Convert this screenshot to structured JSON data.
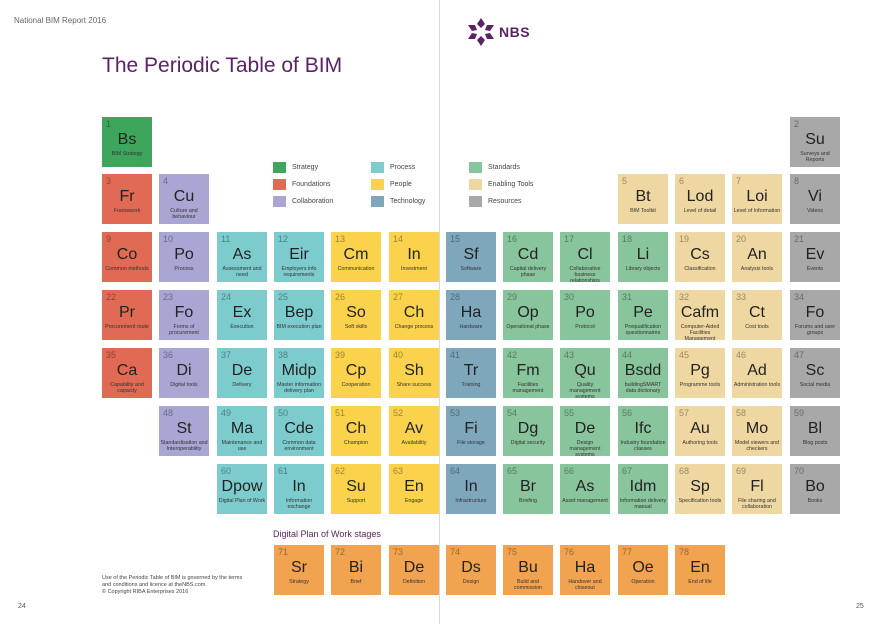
{
  "header": {
    "report_title": "National BIM Report 2016"
  },
  "logo": {
    "text": "NBS"
  },
  "title": "The Periodic Table of BIM",
  "colors": {
    "strategy": "#3ea55c",
    "foundations": "#e06a53",
    "collaboration": "#a9a6d3",
    "process": "#7ccccd",
    "people": "#fbd24b",
    "technology": "#7fa7bc",
    "standards": "#88c49c",
    "enabling": "#efd7a1",
    "resources": "#a8a8a8",
    "dpow": "#f2a350",
    "brand": "#5b2266"
  },
  "legend": [
    {
      "label": "Strategy",
      "cat": "strategy"
    },
    {
      "label": "Foundations",
      "cat": "foundations"
    },
    {
      "label": "Collaboration",
      "cat": "collaboration"
    },
    {
      "label": "Process",
      "cat": "process"
    },
    {
      "label": "People",
      "cat": "people"
    },
    {
      "label": "Technology",
      "cat": "technology"
    },
    {
      "label": "Standards",
      "cat": "standards"
    },
    {
      "label": "Enabling Tools",
      "cat": "enabling"
    },
    {
      "label": "Resources",
      "cat": "resources"
    }
  ],
  "elements": [
    {
      "n": "1",
      "s": "Bs",
      "name": "BIM Strategy",
      "cat": "strategy",
      "row": 0,
      "col": 0
    },
    {
      "n": "2",
      "s": "Su",
      "name": "Surveys and Reports",
      "cat": "resources",
      "row": 0,
      "col": 12
    },
    {
      "n": "3",
      "s": "Fr",
      "name": "Framework",
      "cat": "foundations",
      "row": 1,
      "col": 0
    },
    {
      "n": "4",
      "s": "Cu",
      "name": "Culture and behaviour",
      "cat": "collaboration",
      "row": 1,
      "col": 1
    },
    {
      "n": "5",
      "s": "Bt",
      "name": "BIM Toolkit",
      "cat": "enabling",
      "row": 1,
      "col": 9
    },
    {
      "n": "6",
      "s": "Lod",
      "name": "Level of detail",
      "cat": "enabling",
      "row": 1,
      "col": 10
    },
    {
      "n": "7",
      "s": "Loi",
      "name": "Level of Information",
      "cat": "enabling",
      "row": 1,
      "col": 11
    },
    {
      "n": "8",
      "s": "Vi",
      "name": "Videos",
      "cat": "resources",
      "row": 1,
      "col": 12
    },
    {
      "n": "9",
      "s": "Co",
      "name": "Common methods",
      "cat": "foundations",
      "row": 2,
      "col": 0
    },
    {
      "n": "10",
      "s": "Po",
      "name": "Process",
      "cat": "collaboration",
      "row": 2,
      "col": 1
    },
    {
      "n": "11",
      "s": "As",
      "name": "Assessment and need",
      "cat": "process",
      "row": 2,
      "col": 2
    },
    {
      "n": "12",
      "s": "Eir",
      "name": "Employers info requirements",
      "cat": "process",
      "row": 2,
      "col": 3
    },
    {
      "n": "13",
      "s": "Cm",
      "name": "Communication",
      "cat": "people",
      "row": 2,
      "col": 4
    },
    {
      "n": "14",
      "s": "In",
      "name": "Investment",
      "cat": "people",
      "row": 2,
      "col": 5
    },
    {
      "n": "15",
      "s": "Sf",
      "name": "Software",
      "cat": "technology",
      "row": 2,
      "col": 6
    },
    {
      "n": "16",
      "s": "Cd",
      "name": "Capital delivery phase",
      "cat": "standards",
      "row": 2,
      "col": 7
    },
    {
      "n": "17",
      "s": "Cl",
      "name": "Collaborative business relationships",
      "cat": "standards",
      "row": 2,
      "col": 8
    },
    {
      "n": "18",
      "s": "Li",
      "name": "Library objects",
      "cat": "standards",
      "row": 2,
      "col": 9
    },
    {
      "n": "19",
      "s": "Cs",
      "name": "Classification",
      "cat": "enabling",
      "row": 2,
      "col": 10
    },
    {
      "n": "20",
      "s": "An",
      "name": "Analysis tools",
      "cat": "enabling",
      "row": 2,
      "col": 11
    },
    {
      "n": "21",
      "s": "Ev",
      "name": "Events",
      "cat": "resources",
      "row": 2,
      "col": 12
    },
    {
      "n": "22",
      "s": "Pr",
      "name": "Procurement route",
      "cat": "foundations",
      "row": 3,
      "col": 0
    },
    {
      "n": "23",
      "s": "Fo",
      "name": "Forms of procurement",
      "cat": "collaboration",
      "row": 3,
      "col": 1
    },
    {
      "n": "24",
      "s": "Ex",
      "name": "Execution",
      "cat": "process",
      "row": 3,
      "col": 2
    },
    {
      "n": "25",
      "s": "Bep",
      "name": "BIM execution plan",
      "cat": "process",
      "row": 3,
      "col": 3
    },
    {
      "n": "26",
      "s": "So",
      "name": "Soft skills",
      "cat": "people",
      "row": 3,
      "col": 4
    },
    {
      "n": "27",
      "s": "Ch",
      "name": "Change process",
      "cat": "people",
      "row": 3,
      "col": 5
    },
    {
      "n": "28",
      "s": "Ha",
      "name": "Hardware",
      "cat": "technology",
      "row": 3,
      "col": 6
    },
    {
      "n": "29",
      "s": "Op",
      "name": "Operational phase",
      "cat": "standards",
      "row": 3,
      "col": 7
    },
    {
      "n": "30",
      "s": "Po",
      "name": "Protocol",
      "cat": "standards",
      "row": 3,
      "col": 8
    },
    {
      "n": "31",
      "s": "Pe",
      "name": "Prequalification questionnaires",
      "cat": "standards",
      "row": 3,
      "col": 9
    },
    {
      "n": "32",
      "s": "Cafm",
      "name": "Computer-Aided Facilities Management",
      "cat": "enabling",
      "row": 3,
      "col": 10
    },
    {
      "n": "33",
      "s": "Ct",
      "name": "Cost tools",
      "cat": "enabling",
      "row": 3,
      "col": 11
    },
    {
      "n": "34",
      "s": "Fo",
      "name": "Forums and user groups",
      "cat": "resources",
      "row": 3,
      "col": 12
    },
    {
      "n": "35",
      "s": "Ca",
      "name": "Capability and capacity",
      "cat": "foundations",
      "row": 4,
      "col": 0
    },
    {
      "n": "36",
      "s": "Di",
      "name": "Digital tools",
      "cat": "collaboration",
      "row": 4,
      "col": 1
    },
    {
      "n": "37",
      "s": "De",
      "name": "Delivery",
      "cat": "process",
      "row": 4,
      "col": 2
    },
    {
      "n": "38",
      "s": "Midp",
      "name": "Master information delivery plan",
      "cat": "process",
      "row": 4,
      "col": 3
    },
    {
      "n": "39",
      "s": "Cp",
      "name": "Cooperation",
      "cat": "people",
      "row": 4,
      "col": 4
    },
    {
      "n": "40",
      "s": "Sh",
      "name": "Share success",
      "cat": "people",
      "row": 4,
      "col": 5
    },
    {
      "n": "41",
      "s": "Tr",
      "name": "Training",
      "cat": "technology",
      "row": 4,
      "col": 6
    },
    {
      "n": "42",
      "s": "Fm",
      "name": "Facilities management",
      "cat": "standards",
      "row": 4,
      "col": 7
    },
    {
      "n": "43",
      "s": "Qu",
      "name": "Quality management systems",
      "cat": "standards",
      "row": 4,
      "col": 8
    },
    {
      "n": "44",
      "s": "Bsdd",
      "name": "buildingSMART data dictionary",
      "cat": "standards",
      "row": 4,
      "col": 9
    },
    {
      "n": "45",
      "s": "Pg",
      "name": "Programme tools",
      "cat": "enabling",
      "row": 4,
      "col": 10
    },
    {
      "n": "46",
      "s": "Ad",
      "name": "Administration tools",
      "cat": "enabling",
      "row": 4,
      "col": 11
    },
    {
      "n": "47",
      "s": "Sc",
      "name": "Social media",
      "cat": "resources",
      "row": 4,
      "col": 12
    },
    {
      "n": "48",
      "s": "St",
      "name": "Standardisation and Interoperability",
      "cat": "collaboration",
      "row": 5,
      "col": 1
    },
    {
      "n": "49",
      "s": "Ma",
      "name": "Maintenance and use",
      "cat": "process",
      "row": 5,
      "col": 2
    },
    {
      "n": "50",
      "s": "Cde",
      "name": "Common data environment",
      "cat": "process",
      "row": 5,
      "col": 3
    },
    {
      "n": "51",
      "s": "Ch",
      "name": "Champion",
      "cat": "people",
      "row": 5,
      "col": 4
    },
    {
      "n": "52",
      "s": "Av",
      "name": "Availability",
      "cat": "people",
      "row": 5,
      "col": 5
    },
    {
      "n": "53",
      "s": "Fi",
      "name": "File storage",
      "cat": "technology",
      "row": 5,
      "col": 6
    },
    {
      "n": "54",
      "s": "Dg",
      "name": "Digital security",
      "cat": "standards",
      "row": 5,
      "col": 7
    },
    {
      "n": "55",
      "s": "De",
      "name": "Design management systems",
      "cat": "standards",
      "row": 5,
      "col": 8
    },
    {
      "n": "56",
      "s": "Ifc",
      "name": "Industry foundation classes",
      "cat": "standards",
      "row": 5,
      "col": 9
    },
    {
      "n": "57",
      "s": "Au",
      "name": "Authoring tools",
      "cat": "enabling",
      "row": 5,
      "col": 10
    },
    {
      "n": "58",
      "s": "Mo",
      "name": "Model viewers and checkers",
      "cat": "enabling",
      "row": 5,
      "col": 11
    },
    {
      "n": "59",
      "s": "Bl",
      "name": "Blog posts",
      "cat": "resources",
      "row": 5,
      "col": 12
    },
    {
      "n": "60",
      "s": "Dpow",
      "name": "Digital Plan of Work",
      "cat": "process",
      "row": 6,
      "col": 2
    },
    {
      "n": "61",
      "s": "In",
      "name": "Information exchange",
      "cat": "process",
      "row": 6,
      "col": 3
    },
    {
      "n": "62",
      "s": "Su",
      "name": "Support",
      "cat": "people",
      "row": 6,
      "col": 4
    },
    {
      "n": "63",
      "s": "En",
      "name": "Engage",
      "cat": "people",
      "row": 6,
      "col": 5
    },
    {
      "n": "64",
      "s": "In",
      "name": "Infrastructure",
      "cat": "technology",
      "row": 6,
      "col": 6
    },
    {
      "n": "65",
      "s": "Br",
      "name": "Briefing",
      "cat": "standards",
      "row": 6,
      "col": 7
    },
    {
      "n": "66",
      "s": "As",
      "name": "Asset management",
      "cat": "standards",
      "row": 6,
      "col": 8
    },
    {
      "n": "67",
      "s": "Idm",
      "name": "Information delivery manual",
      "cat": "standards",
      "row": 6,
      "col": 9
    },
    {
      "n": "68",
      "s": "Sp",
      "name": "Specification tools",
      "cat": "enabling",
      "row": 6,
      "col": 10
    },
    {
      "n": "69",
      "s": "Fl",
      "name": "File sharing and collaboration",
      "cat": "enabling",
      "row": 6,
      "col": 11
    },
    {
      "n": "70",
      "s": "Bo",
      "name": "Books",
      "cat": "resources",
      "row": 6,
      "col": 12
    }
  ],
  "dpow_heading": "Digital Plan of Work stages",
  "dpow": [
    {
      "n": "71",
      "s": "Sr",
      "name": "Strategy"
    },
    {
      "n": "72",
      "s": "Bi",
      "name": "Brief"
    },
    {
      "n": "73",
      "s": "De",
      "name": "Definition"
    },
    {
      "n": "74",
      "s": "Ds",
      "name": "Design"
    },
    {
      "n": "75",
      "s": "Bu",
      "name": "Build and commission"
    },
    {
      "n": "76",
      "s": "Ha",
      "name": "Handover and closeout"
    },
    {
      "n": "77",
      "s": "Oe",
      "name": "Operation"
    },
    {
      "n": "78",
      "s": "En",
      "name": "End of life"
    }
  ],
  "footnote": {
    "line1": "Use of the Periodic Table of BIM is governed by the terms",
    "line2": "and conditions and licence at theNBS.com.",
    "line3": "© Copyright RIBA Enterprises 2016"
  },
  "pages": {
    "left": "24",
    "right": "25"
  }
}
